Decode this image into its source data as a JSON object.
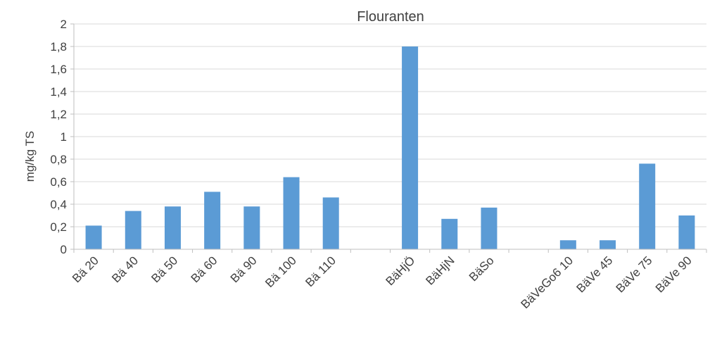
{
  "chart_data": {
    "type": "bar",
    "title": "Flouranten",
    "ylabel": "mg/kg TS",
    "xlabel": "",
    "ylim": [
      0,
      2
    ],
    "yticks": [
      "0",
      "0,2",
      "0,4",
      "0,6",
      "0,8",
      "1",
      "1,2",
      "1,4",
      "1,6",
      "1,8",
      "2"
    ],
    "categories": [
      "Bä 20",
      "Bä 40",
      "Bä 50",
      "Bä 60",
      "Bä 90",
      "Bä 100",
      "Bä 110",
      "",
      "BäHjÖ",
      "BäHjN",
      "BäSo",
      "",
      "BäVeGo6 10",
      "BäVe 45",
      "BäVe 75",
      "BäVe 90"
    ],
    "values": [
      0.21,
      0.34,
      0.38,
      0.51,
      0.38,
      0.64,
      0.46,
      null,
      1.8,
      0.27,
      0.37,
      null,
      0.08,
      0.08,
      0.76,
      0.3
    ],
    "bar_color": "#5b9bd5",
    "grid": true,
    "legend": "none"
  }
}
